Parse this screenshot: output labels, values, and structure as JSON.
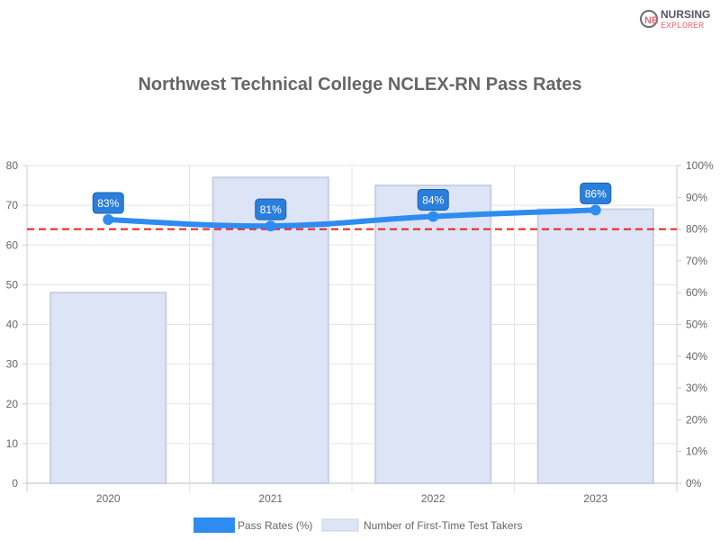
{
  "logo": {
    "line1": "NURSING",
    "line2": "EXPLORER"
  },
  "chart_data": {
    "type": "bar+line",
    "title": "Northwest Technical College NCLEX-RN Pass Rates",
    "categories": [
      "2020",
      "2021",
      "2022",
      "2023"
    ],
    "series": [
      {
        "name": "Pass Rates (%)",
        "type": "line",
        "axis": "right",
        "values": [
          83,
          81,
          84,
          86
        ],
        "labels": [
          "83%",
          "81%",
          "84%",
          "86%"
        ],
        "color": "#2e8cf0"
      },
      {
        "name": "Number of First-Time Test Takers",
        "type": "bar",
        "axis": "left",
        "values": [
          48,
          77,
          75,
          69
        ],
        "color": "#dce4f6"
      }
    ],
    "y_left": {
      "range": [
        0,
        80
      ],
      "ticks": [
        "0",
        "10",
        "20",
        "30",
        "40",
        "50",
        "60",
        "70",
        "80"
      ]
    },
    "y_right": {
      "range": [
        0,
        100
      ],
      "ticks": [
        "0%",
        "10%",
        "20%",
        "30%",
        "40%",
        "50%",
        "60%",
        "70%",
        "80%",
        "90%",
        "100%"
      ]
    },
    "reference_line": {
      "value": 80,
      "axis": "right",
      "style": "dashed",
      "color": "#ee1c1c"
    },
    "grid": true,
    "legend_position": "bottom"
  }
}
